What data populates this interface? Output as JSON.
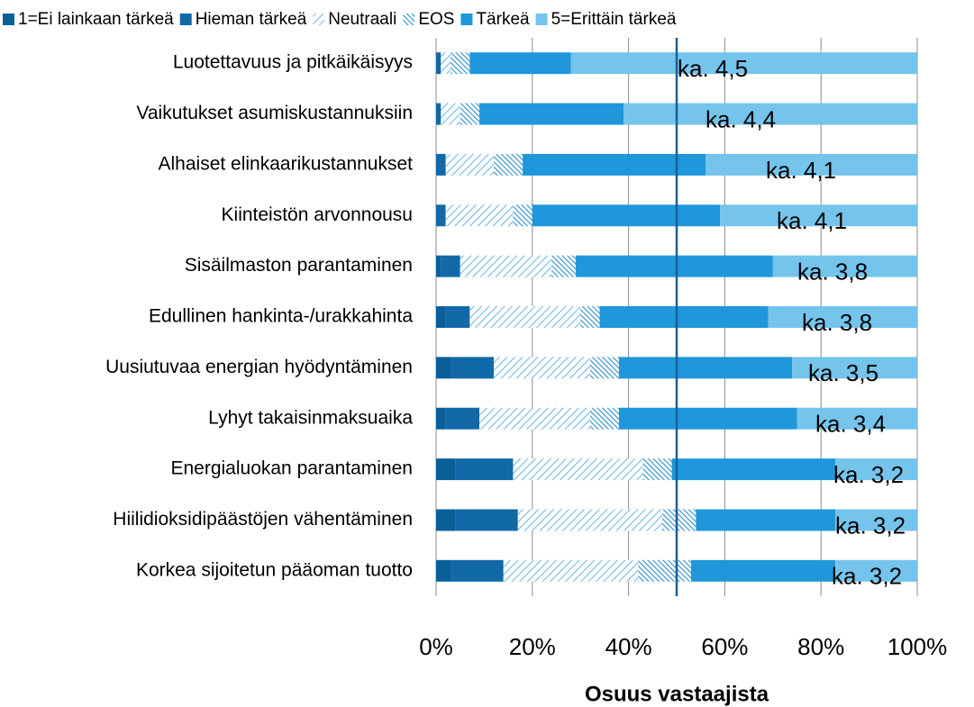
{
  "chart_data": {
    "type": "stacked_bar_horizontal",
    "categories": [
      "Luotettavuus ja pitkäikäisyys",
      "Vaikutukset asumiskustannuksiin",
      "Alhaiset elinkaarikustannukset",
      "Kiinteistön arvonnousu",
      "Sisäilmaston parantaminen",
      "Edullinen hankinta-/urakkahinta",
      "Uusiutuvaa energian hyödyntäminen",
      "Lyhyt takaisinmaksuaika",
      "Energialuokan parantaminen",
      "Hiilidioksidipäästöjen vähentäminen",
      "Korkea sijoitetun pääoman tuotto"
    ],
    "series": [
      {
        "name": "1=Ei lainkaan tärkeä",
        "color": "#0b5f99",
        "values": [
          0,
          0,
          0,
          0,
          1,
          2,
          3,
          2,
          4,
          4,
          3
        ]
      },
      {
        "name": "Hieman tärkeä",
        "color": "#1269a8",
        "values": [
          1,
          1,
          2,
          2,
          4,
          5,
          9,
          7,
          12,
          13,
          11
        ]
      },
      {
        "name": "Neutraali",
        "color": "#3ea2dc",
        "hatch": "light",
        "values": [
          2,
          4,
          10,
          14,
          19,
          23,
          20,
          23,
          27,
          30,
          28
        ]
      },
      {
        "name": "EOS",
        "color": "#2a8fcc",
        "hatch": "dense",
        "values": [
          4,
          4,
          6,
          4,
          5,
          4,
          6,
          6,
          6,
          7,
          11
        ]
      },
      {
        "name": "Tärkeä",
        "color": "#1f97da",
        "values": [
          21,
          30,
          38,
          39,
          41,
          35,
          36,
          37,
          34,
          29,
          30
        ]
      },
      {
        "name": "5=Erittäin tärkeä",
        "color": "#74c4ec",
        "values": [
          72,
          61,
          44,
          41,
          30,
          31,
          26,
          25,
          17,
          17,
          17
        ]
      }
    ],
    "annotations": [
      "ka. 4,5",
      "ka. 4,4",
      "ka. 4,1",
      "ka. 4,1",
      "ka. 3,8",
      "ka. 3,8",
      "ka. 3,5",
      "ka. 3,4",
      "ka. 3,2",
      "ka. 3,2",
      "ka. 3,2"
    ],
    "reference_line": 50,
    "xlim": [
      0,
      100
    ],
    "xticks": [
      {
        "value": 0,
        "label": "0%"
      },
      {
        "value": 20,
        "label": "20%"
      },
      {
        "value": 40,
        "label": "40%"
      },
      {
        "value": 60,
        "label": "60%"
      },
      {
        "value": 80,
        "label": "80%"
      },
      {
        "value": 100,
        "label": "100%"
      }
    ],
    "xlabel": "Osuus vastaajista",
    "grid": true,
    "legend": "top"
  }
}
